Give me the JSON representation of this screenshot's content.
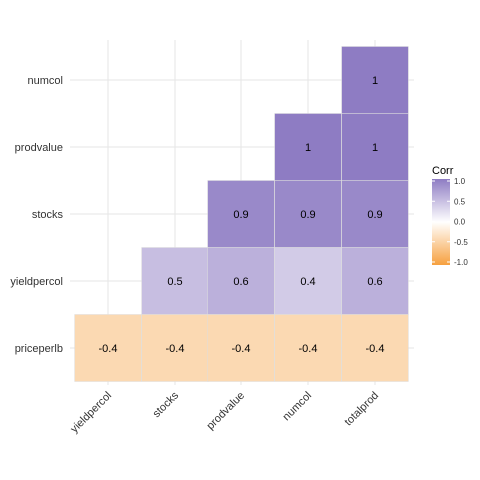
{
  "chart_data": {
    "type": "heatmap",
    "title": "",
    "x_categories": [
      "yieldpercol",
      "stocks",
      "prodvalue",
      "numcol",
      "totalprod"
    ],
    "y_categories": [
      "numcol",
      "prodvalue",
      "stocks",
      "yieldpercol",
      "priceperlb"
    ],
    "cells": [
      {
        "x": "totalprod",
        "y": "numcol",
        "value": 1.0,
        "label": "1"
      },
      {
        "x": "numcol",
        "y": "prodvalue",
        "value": 1.0,
        "label": "1"
      },
      {
        "x": "totalprod",
        "y": "prodvalue",
        "value": 1.0,
        "label": "1"
      },
      {
        "x": "prodvalue",
        "y": "stocks",
        "value": 0.9,
        "label": "0.9"
      },
      {
        "x": "numcol",
        "y": "stocks",
        "value": 0.9,
        "label": "0.9"
      },
      {
        "x": "totalprod",
        "y": "stocks",
        "value": 0.9,
        "label": "0.9"
      },
      {
        "x": "stocks",
        "y": "yieldpercol",
        "value": 0.5,
        "label": "0.5"
      },
      {
        "x": "prodvalue",
        "y": "yieldpercol",
        "value": 0.6,
        "label": "0.6"
      },
      {
        "x": "numcol",
        "y": "yieldpercol",
        "value": 0.4,
        "label": "0.4"
      },
      {
        "x": "totalprod",
        "y": "yieldpercol",
        "value": 0.6,
        "label": "0.6"
      },
      {
        "x": "yieldpercol",
        "y": "priceperlb",
        "value": -0.4,
        "label": "-0.4"
      },
      {
        "x": "stocks",
        "y": "priceperlb",
        "value": -0.4,
        "label": "-0.4"
      },
      {
        "x": "prodvalue",
        "y": "priceperlb",
        "value": -0.4,
        "label": "-0.4"
      },
      {
        "x": "numcol",
        "y": "priceperlb",
        "value": -0.4,
        "label": "-0.4"
      },
      {
        "x": "totalprod",
        "y": "priceperlb",
        "value": -0.4,
        "label": "-0.4"
      }
    ],
    "legend": {
      "title": "Corr",
      "ticks": [
        "1.0",
        "0.5",
        "0.0",
        "-0.5",
        "-1.0"
      ],
      "range": [
        -1.0,
        1.0
      ],
      "position": "right"
    },
    "colors": {
      "high": "#8e7cc3",
      "mid": "#ffffff",
      "low": "#f6a03f",
      "grid": "#e6e6e6",
      "cell_border": "#dddddd"
    },
    "grid": true
  }
}
